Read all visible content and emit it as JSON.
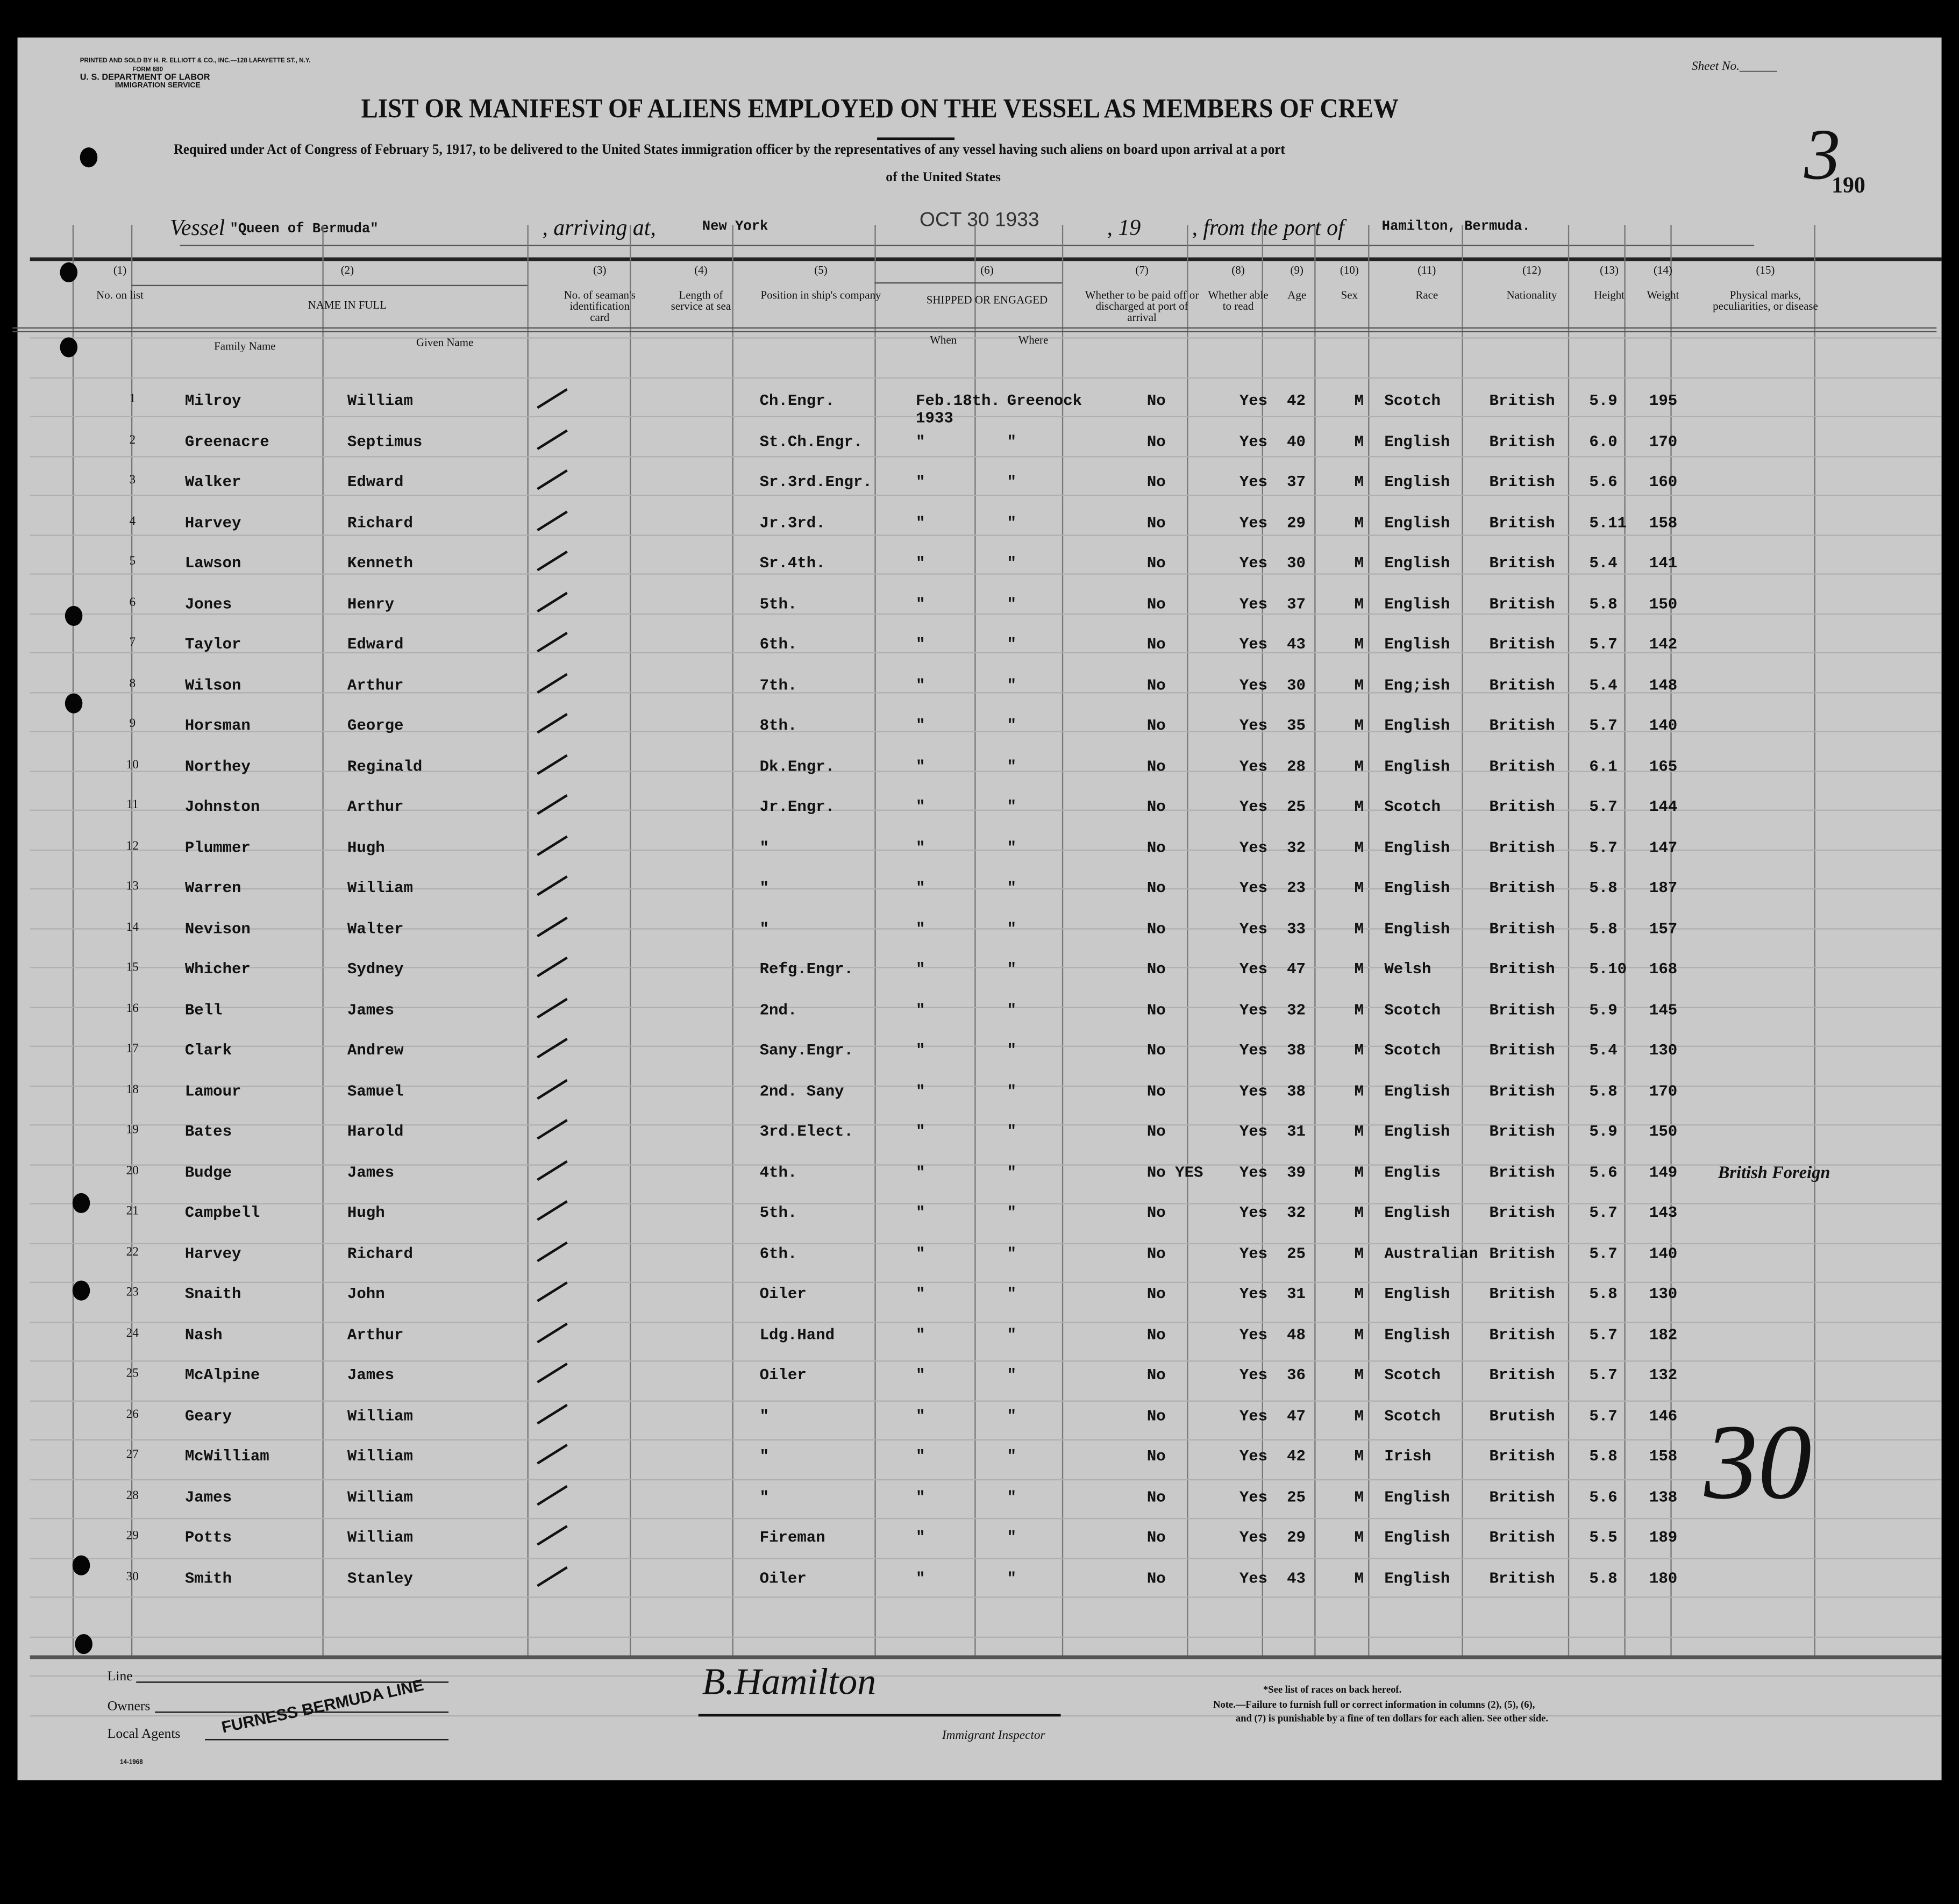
{
  "printer": "PRINTED AND SOLD BY H. R. ELLIOTT & CO., INC.—128 LAFAYETTE ST., N.Y.",
  "form": "FORM 680",
  "department": "U. S. DEPARTMENT OF LABOR",
  "service": "IMMIGRATION SERVICE",
  "sheet_label": "Sheet No.",
  "title": "LIST OR MANIFEST OF ALIENS EMPLOYED ON THE VESSEL AS MEMBERS OF CREW",
  "subtitle": "Required under Act of Congress of February 5, 1917, to be delivered to the United States immigration officer by the representatives of any vessel having such aliens on board upon arrival at a port",
  "subtitle2": "of the United States",
  "sheet_number": "3",
  "page_number": "190",
  "vessel_label": "Vessel",
  "vessel": "\"Queen of Bermuda\"",
  "arriving_label": ", arriving at,",
  "arriving": "New York",
  "date_stamp": "OCT 30 1933",
  "year_label": ", 19",
  "port_label": ", from the port of",
  "port": "Hamilton, Bermuda.",
  "columns": {
    "c1": "(1)",
    "c1l": "No. on list",
    "c2": "(2)",
    "c2l": "NAME IN FULL",
    "family": "Family Name",
    "given": "Given Name",
    "c3": "(3)",
    "c3l": "No. of seaman's identification card",
    "c4": "(4)",
    "c4l": "Length of service at sea",
    "c5": "(5)",
    "c5l": "Position in ship's company",
    "c6": "(6)",
    "c6l": "SHIPPED OR ENGAGED",
    "when": "When",
    "where": "Where",
    "c7": "(7)",
    "c7l": "Whether to be paid off or discharged at port of arrival",
    "c8": "(8)",
    "c8l": "Whether able to read",
    "c9": "(9)",
    "c9l": "Age",
    "c10": "(10)",
    "c10l": "Sex",
    "c11": "(11)",
    "c11l": "Race",
    "c12": "(12)",
    "c12l": "Nationality",
    "c13": "(13)",
    "c13l": "Height",
    "c14": "(14)",
    "c14l": "Weight",
    "c15": "(15)",
    "c15l": "Physical marks, peculiarities, or disease"
  },
  "rows": [
    [
      "1",
      "Milroy",
      "William",
      "Ch.Engr.",
      "Feb.18th. 1933",
      "Greenock",
      "No",
      "Yes",
      "42",
      "M",
      "Scotch",
      "British",
      "5.9",
      "195",
      ""
    ],
    [
      "2",
      "Greenacre",
      "Septimus",
      "St.Ch.Engr.",
      "\"",
      "\"",
      "No",
      "Yes",
      "40",
      "M",
      "English",
      "British",
      "6.0",
      "170",
      ""
    ],
    [
      "3",
      "Walker",
      "Edward",
      "Sr.3rd.Engr.",
      "\"",
      "\"",
      "No",
      "Yes",
      "37",
      "M",
      "English",
      "British",
      "5.6",
      "160",
      ""
    ],
    [
      "4",
      "Harvey",
      "Richard",
      "Jr.3rd.",
      "\"",
      "\"",
      "No",
      "Yes",
      "29",
      "M",
      "English",
      "British",
      "5.11",
      "158",
      ""
    ],
    [
      "5",
      "Lawson",
      "Kenneth",
      "Sr.4th.",
      "\"",
      "\"",
      "No",
      "Yes",
      "30",
      "M",
      "English",
      "British",
      "5.4",
      "141",
      ""
    ],
    [
      "6",
      "Jones",
      "Henry",
      "5th.",
      "\"",
      "\"",
      "No",
      "Yes",
      "37",
      "M",
      "English",
      "British",
      "5.8",
      "150",
      ""
    ],
    [
      "7",
      "Taylor",
      "Edward",
      "6th.",
      "\"",
      "\"",
      "No",
      "Yes",
      "43",
      "M",
      "English",
      "British",
      "5.7",
      "142",
      ""
    ],
    [
      "8",
      "Wilson",
      "Arthur",
      "7th.",
      "\"",
      "\"",
      "No",
      "Yes",
      "30",
      "M",
      "Eng;ish",
      "British",
      "5.4",
      "148",
      ""
    ],
    [
      "9",
      "Horsman",
      "George",
      "8th.",
      "\"",
      "\"",
      "No",
      "Yes",
      "35",
      "M",
      "English",
      "British",
      "5.7",
      "140",
      ""
    ],
    [
      "10",
      "Northey",
      "Reginald",
      "Dk.Engr.",
      "\"",
      "\"",
      "No",
      "Yes",
      "28",
      "M",
      "English",
      "British",
      "6.1",
      "165",
      ""
    ],
    [
      "11",
      "Johnston",
      "Arthur",
      "Jr.Engr.",
      "\"",
      "\"",
      "No",
      "Yes",
      "25",
      "M",
      "Scotch",
      "British",
      "5.7",
      "144",
      ""
    ],
    [
      "12",
      "Plummer",
      "Hugh",
      "\"",
      "\"",
      "\"",
      "No",
      "Yes",
      "32",
      "M",
      "English",
      "British",
      "5.7",
      "147",
      ""
    ],
    [
      "13",
      "Warren",
      "William",
      "\"",
      "\"",
      "\"",
      "No",
      "Yes",
      "23",
      "M",
      "English",
      "British",
      "5.8",
      "187",
      ""
    ],
    [
      "14",
      "Nevison",
      "Walter",
      "\"",
      "\"",
      "\"",
      "No",
      "Yes",
      "33",
      "M",
      "English",
      "British",
      "5.8",
      "157",
      ""
    ],
    [
      "15",
      "Whicher",
      "Sydney",
      "Refg.Engr.",
      "\"",
      "\"",
      "No",
      "Yes",
      "47",
      "M",
      "Welsh",
      "British",
      "5.10",
      "168",
      ""
    ],
    [
      "16",
      "Bell",
      "James",
      "2nd.",
      "\"",
      "\"",
      "No",
      "Yes",
      "32",
      "M",
      "Scotch",
      "British",
      "5.9",
      "145",
      ""
    ],
    [
      "17",
      "Clark",
      "Andrew",
      "Sany.Engr.",
      "\"",
      "\"",
      "No",
      "Yes",
      "38",
      "M",
      "Scotch",
      "British",
      "5.4",
      "130",
      ""
    ],
    [
      "18",
      "Lamour",
      "Samuel",
      "2nd. Sany",
      "\"",
      "\"",
      "No",
      "Yes",
      "38",
      "M",
      "English",
      "British",
      "5.8",
      "170",
      ""
    ],
    [
      "19",
      "Bates",
      "Harold",
      "3rd.Elect.",
      "\"",
      "\"",
      "No",
      "Yes",
      "31",
      "M",
      "English",
      "British",
      "5.9",
      "150",
      ""
    ],
    [
      "20",
      "Budge",
      "James",
      "4th.",
      "\"",
      "\"",
      "No YES",
      "Yes",
      "39",
      "M",
      "Englis",
      "British",
      "5.6",
      "149",
      "British Foreign"
    ],
    [
      "21",
      "Campbell",
      "Hugh",
      "5th.",
      "\"",
      "\"",
      "No",
      "Yes",
      "32",
      "M",
      "English",
      "British",
      "5.7",
      "143",
      ""
    ],
    [
      "22",
      "Harvey",
      "Richard",
      "6th.",
      "\"",
      "\"",
      "No",
      "Yes",
      "25",
      "M",
      "Australian",
      "British",
      "5.7",
      "140",
      ""
    ],
    [
      "23",
      "Snaith",
      "John",
      "Oiler",
      "\"",
      "\"",
      "No",
      "Yes",
      "31",
      "M",
      "English",
      "British",
      "5.8",
      "130",
      ""
    ],
    [
      "24",
      "Nash",
      "Arthur",
      "Ldg.Hand",
      "\"",
      "\"",
      "No",
      "Yes",
      "48",
      "M",
      "English",
      "British",
      "5.7",
      "182",
      ""
    ],
    [
      "25",
      "McAlpine",
      "James",
      "Oiler",
      "\"",
      "\"",
      "No",
      "Yes",
      "36",
      "M",
      "Scotch",
      "British",
      "5.7",
      "132",
      ""
    ],
    [
      "26",
      "Geary",
      "William",
      "\"",
      "\"",
      "\"",
      "No",
      "Yes",
      "47",
      "M",
      "Scotch",
      "Brutish",
      "5.7",
      "146",
      ""
    ],
    [
      "27",
      "McWilliam",
      "William",
      "\"",
      "\"",
      "\"",
      "No",
      "Yes",
      "42",
      "M",
      "Irish",
      "British",
      "5.8",
      "158",
      ""
    ],
    [
      "28",
      "James",
      "William",
      "\"",
      "\"",
      "\"",
      "No",
      "Yes",
      "25",
      "M",
      "English",
      "British",
      "5.6",
      "138",
      ""
    ],
    [
      "29",
      "Potts",
      "William",
      "Fireman",
      "\"",
      "\"",
      "No",
      "Yes",
      "29",
      "M",
      "English",
      "British",
      "5.5",
      "189",
      ""
    ],
    [
      "30",
      "Smith",
      "Stanley",
      "Oiler",
      "\"",
      "\"",
      "No",
      "Yes",
      "43",
      "M",
      "English",
      "British",
      "5.8",
      "180",
      ""
    ]
  ],
  "total_handwritten": "30",
  "footer": {
    "line_label": "Line",
    "owners_label": "Owners",
    "agents_label": "Local Agents",
    "agent_stamp": "FURNESS BERMUDA LINE",
    "signature": "B.Hamilton",
    "inspector_label": "Immigrant Inspector",
    "races_note": "*See list of races on back hereof.",
    "note": "Note.—Failure to furnish full or correct information in columns (2), (5), (6),",
    "note2": "and (7) is punishable by a fine of ten dollars for each alien. See other side.",
    "form_code": "14-1968"
  }
}
